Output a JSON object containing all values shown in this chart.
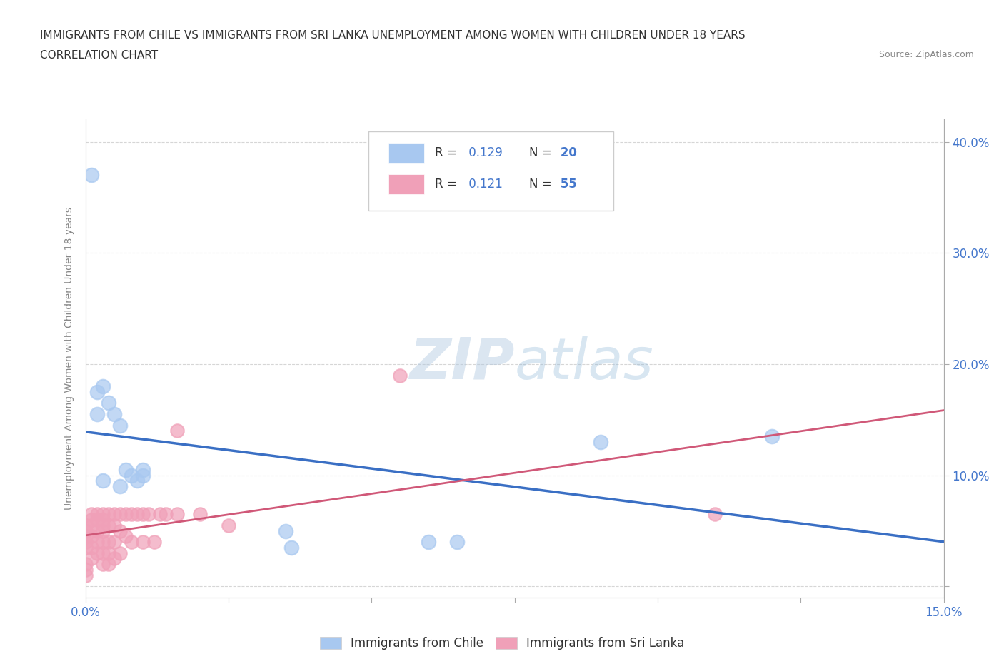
{
  "title_line1": "IMMIGRANTS FROM CHILE VS IMMIGRANTS FROM SRI LANKA UNEMPLOYMENT AMONG WOMEN WITH CHILDREN UNDER 18 YEARS",
  "title_line2": "CORRELATION CHART",
  "source_text": "Source: ZipAtlas.com",
  "ylabel": "Unemployment Among Women with Children Under 18 years",
  "xlim": [
    0.0,
    0.15
  ],
  "ylim": [
    -0.01,
    0.42
  ],
  "xticks": [
    0.0,
    0.025,
    0.05,
    0.075,
    0.1,
    0.125,
    0.15
  ],
  "xticklabels": [
    "0.0%",
    "",
    "",
    "",
    "",
    "",
    "15.0%"
  ],
  "yticks": [
    0.0,
    0.1,
    0.2,
    0.3,
    0.4
  ],
  "yticklabels": [
    "",
    "10.0%",
    "20.0%",
    "30.0%",
    "40.0%"
  ],
  "chile_color": "#a8c8f0",
  "srilanka_color": "#f0a0b8",
  "chile_R": 0.129,
  "chile_N": 20,
  "srilanka_R": 0.121,
  "srilanka_N": 55,
  "chile_line_color": "#3a6fc4",
  "srilanka_line_color": "#d05878",
  "watermark_zip": "ZIP",
  "watermark_atlas": "atlas",
  "bg_color": "#ffffff",
  "grid_color": "#cccccc",
  "axis_color": "#aaaaaa",
  "tick_label_color": "#4477cc",
  "title_color": "#333333",
  "ylabel_color": "#888888",
  "chile_scatter_x": [
    0.002,
    0.002,
    0.003,
    0.003,
    0.004,
    0.005,
    0.006,
    0.006,
    0.007,
    0.008,
    0.009,
    0.01,
    0.01,
    0.035,
    0.036,
    0.06,
    0.065,
    0.09,
    0.12,
    0.001
  ],
  "chile_scatter_y": [
    0.175,
    0.155,
    0.18,
    0.095,
    0.165,
    0.155,
    0.145,
    0.09,
    0.105,
    0.1,
    0.095,
    0.105,
    0.1,
    0.05,
    0.035,
    0.04,
    0.04,
    0.13,
    0.135,
    0.37
  ],
  "srilanka_scatter_x": [
    0.0,
    0.0,
    0.0,
    0.0,
    0.0,
    0.0,
    0.0,
    0.0,
    0.001,
    0.001,
    0.001,
    0.001,
    0.001,
    0.001,
    0.002,
    0.002,
    0.002,
    0.002,
    0.002,
    0.003,
    0.003,
    0.003,
    0.003,
    0.003,
    0.003,
    0.003,
    0.004,
    0.004,
    0.004,
    0.004,
    0.004,
    0.005,
    0.005,
    0.005,
    0.005,
    0.006,
    0.006,
    0.006,
    0.007,
    0.007,
    0.008,
    0.008,
    0.009,
    0.01,
    0.01,
    0.011,
    0.012,
    0.013,
    0.014,
    0.016,
    0.016,
    0.02,
    0.025,
    0.055,
    0.11
  ],
  "srilanka_scatter_y": [
    0.055,
    0.05,
    0.045,
    0.04,
    0.035,
    0.02,
    0.015,
    0.01,
    0.065,
    0.06,
    0.055,
    0.045,
    0.035,
    0.025,
    0.065,
    0.06,
    0.05,
    0.04,
    0.03,
    0.065,
    0.06,
    0.055,
    0.05,
    0.04,
    0.03,
    0.02,
    0.065,
    0.055,
    0.04,
    0.03,
    0.02,
    0.065,
    0.055,
    0.04,
    0.025,
    0.065,
    0.05,
    0.03,
    0.065,
    0.045,
    0.065,
    0.04,
    0.065,
    0.065,
    0.04,
    0.065,
    0.04,
    0.065,
    0.065,
    0.14,
    0.065,
    0.065,
    0.055,
    0.19,
    0.065
  ],
  "legend_R_color": "#4477cc",
  "legend_N_color": "#4477cc",
  "legend_label_color": "#333333"
}
